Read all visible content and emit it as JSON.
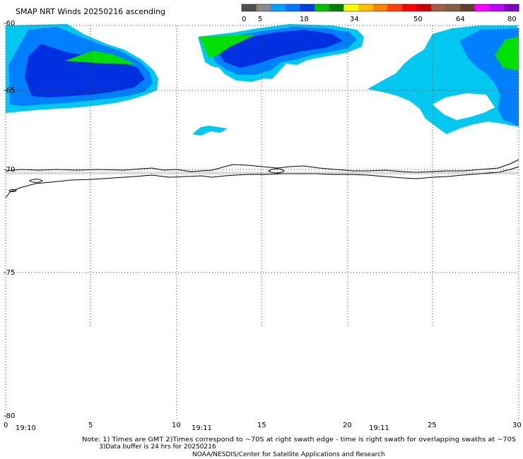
{
  "title": "SMAP NRT Winds 20250216 ascending",
  "colorbar": {
    "tick_labels": [
      "0",
      "5",
      "18",
      "34",
      "50",
      "64",
      "80"
    ],
    "colors": [
      "#505050",
      "#8a8a8a",
      "#00a0ff",
      "#0078ff",
      "#0040e0",
      "#00c000",
      "#008000",
      "#ffff00",
      "#ffc000",
      "#ff8000",
      "#ff4000",
      "#ff0000",
      "#d00000",
      "#a06040",
      "#806040",
      "#604030",
      "#ff00ff",
      "#c000ff",
      "#8000c0"
    ]
  },
  "axes": {
    "y_labels": [
      "-60",
      "-65",
      "-70",
      "-75",
      "-80"
    ],
    "x_labels": [
      "0",
      "5",
      "10",
      "15",
      "20",
      "25",
      "30"
    ],
    "time_labels": [
      "19:10",
      "19:11",
      "19:11"
    ]
  },
  "wind_colors": {
    "light": "#00c8f0",
    "medium": "#0080ff",
    "strong": "#0030e0",
    "green": "#00e000"
  },
  "notes": {
    "line1": "Note: 1) Times are GMT 2)Times correspond to ~70S at right swath edge - time is right swath for overlapping swaths at ~70S",
    "line2": "3)Data buffer is 24 hrs for 20250216",
    "line3": "NOAA/NESDIS/Center for Satellite Applications and Research"
  }
}
